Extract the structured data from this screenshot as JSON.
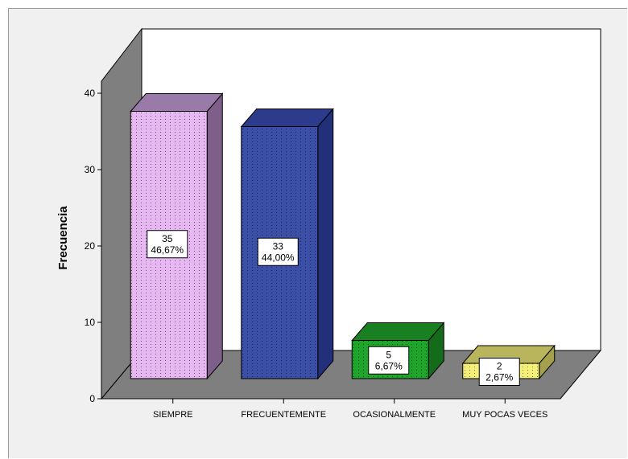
{
  "chart_data": {
    "type": "bar",
    "ylabel": "Frecuencia",
    "xlabel": "",
    "ylim": [
      0,
      40
    ],
    "yticks": [
      0,
      10,
      20,
      30,
      40
    ],
    "grid": false,
    "legend": "none",
    "style": "3d",
    "categories": [
      "SIEMPRE",
      "FRECUENTEMENTE",
      "OCASIONALMENTE",
      "MUY POCAS VECES"
    ],
    "values": [
      35,
      33,
      5,
      2
    ],
    "percent_labels": [
      "46,67%",
      "44,00%",
      "6,67%",
      "2,67%"
    ],
    "colors": {
      "front": [
        "#e7b7f1",
        "#3b4fa6",
        "#1fa52b",
        "#f5f07a"
      ],
      "side": [
        "#7d5f8a",
        "#22307a",
        "#146b1a",
        "#a3a14b"
      ],
      "top": [
        "#9a7aa8",
        "#2c3b8c",
        "#188021",
        "#b9b55c"
      ],
      "wall": "#7f7f7f",
      "floor": "#7f7f7f",
      "plot_bg": "#ffffff",
      "frame_bg": "#f0f0f0"
    }
  }
}
